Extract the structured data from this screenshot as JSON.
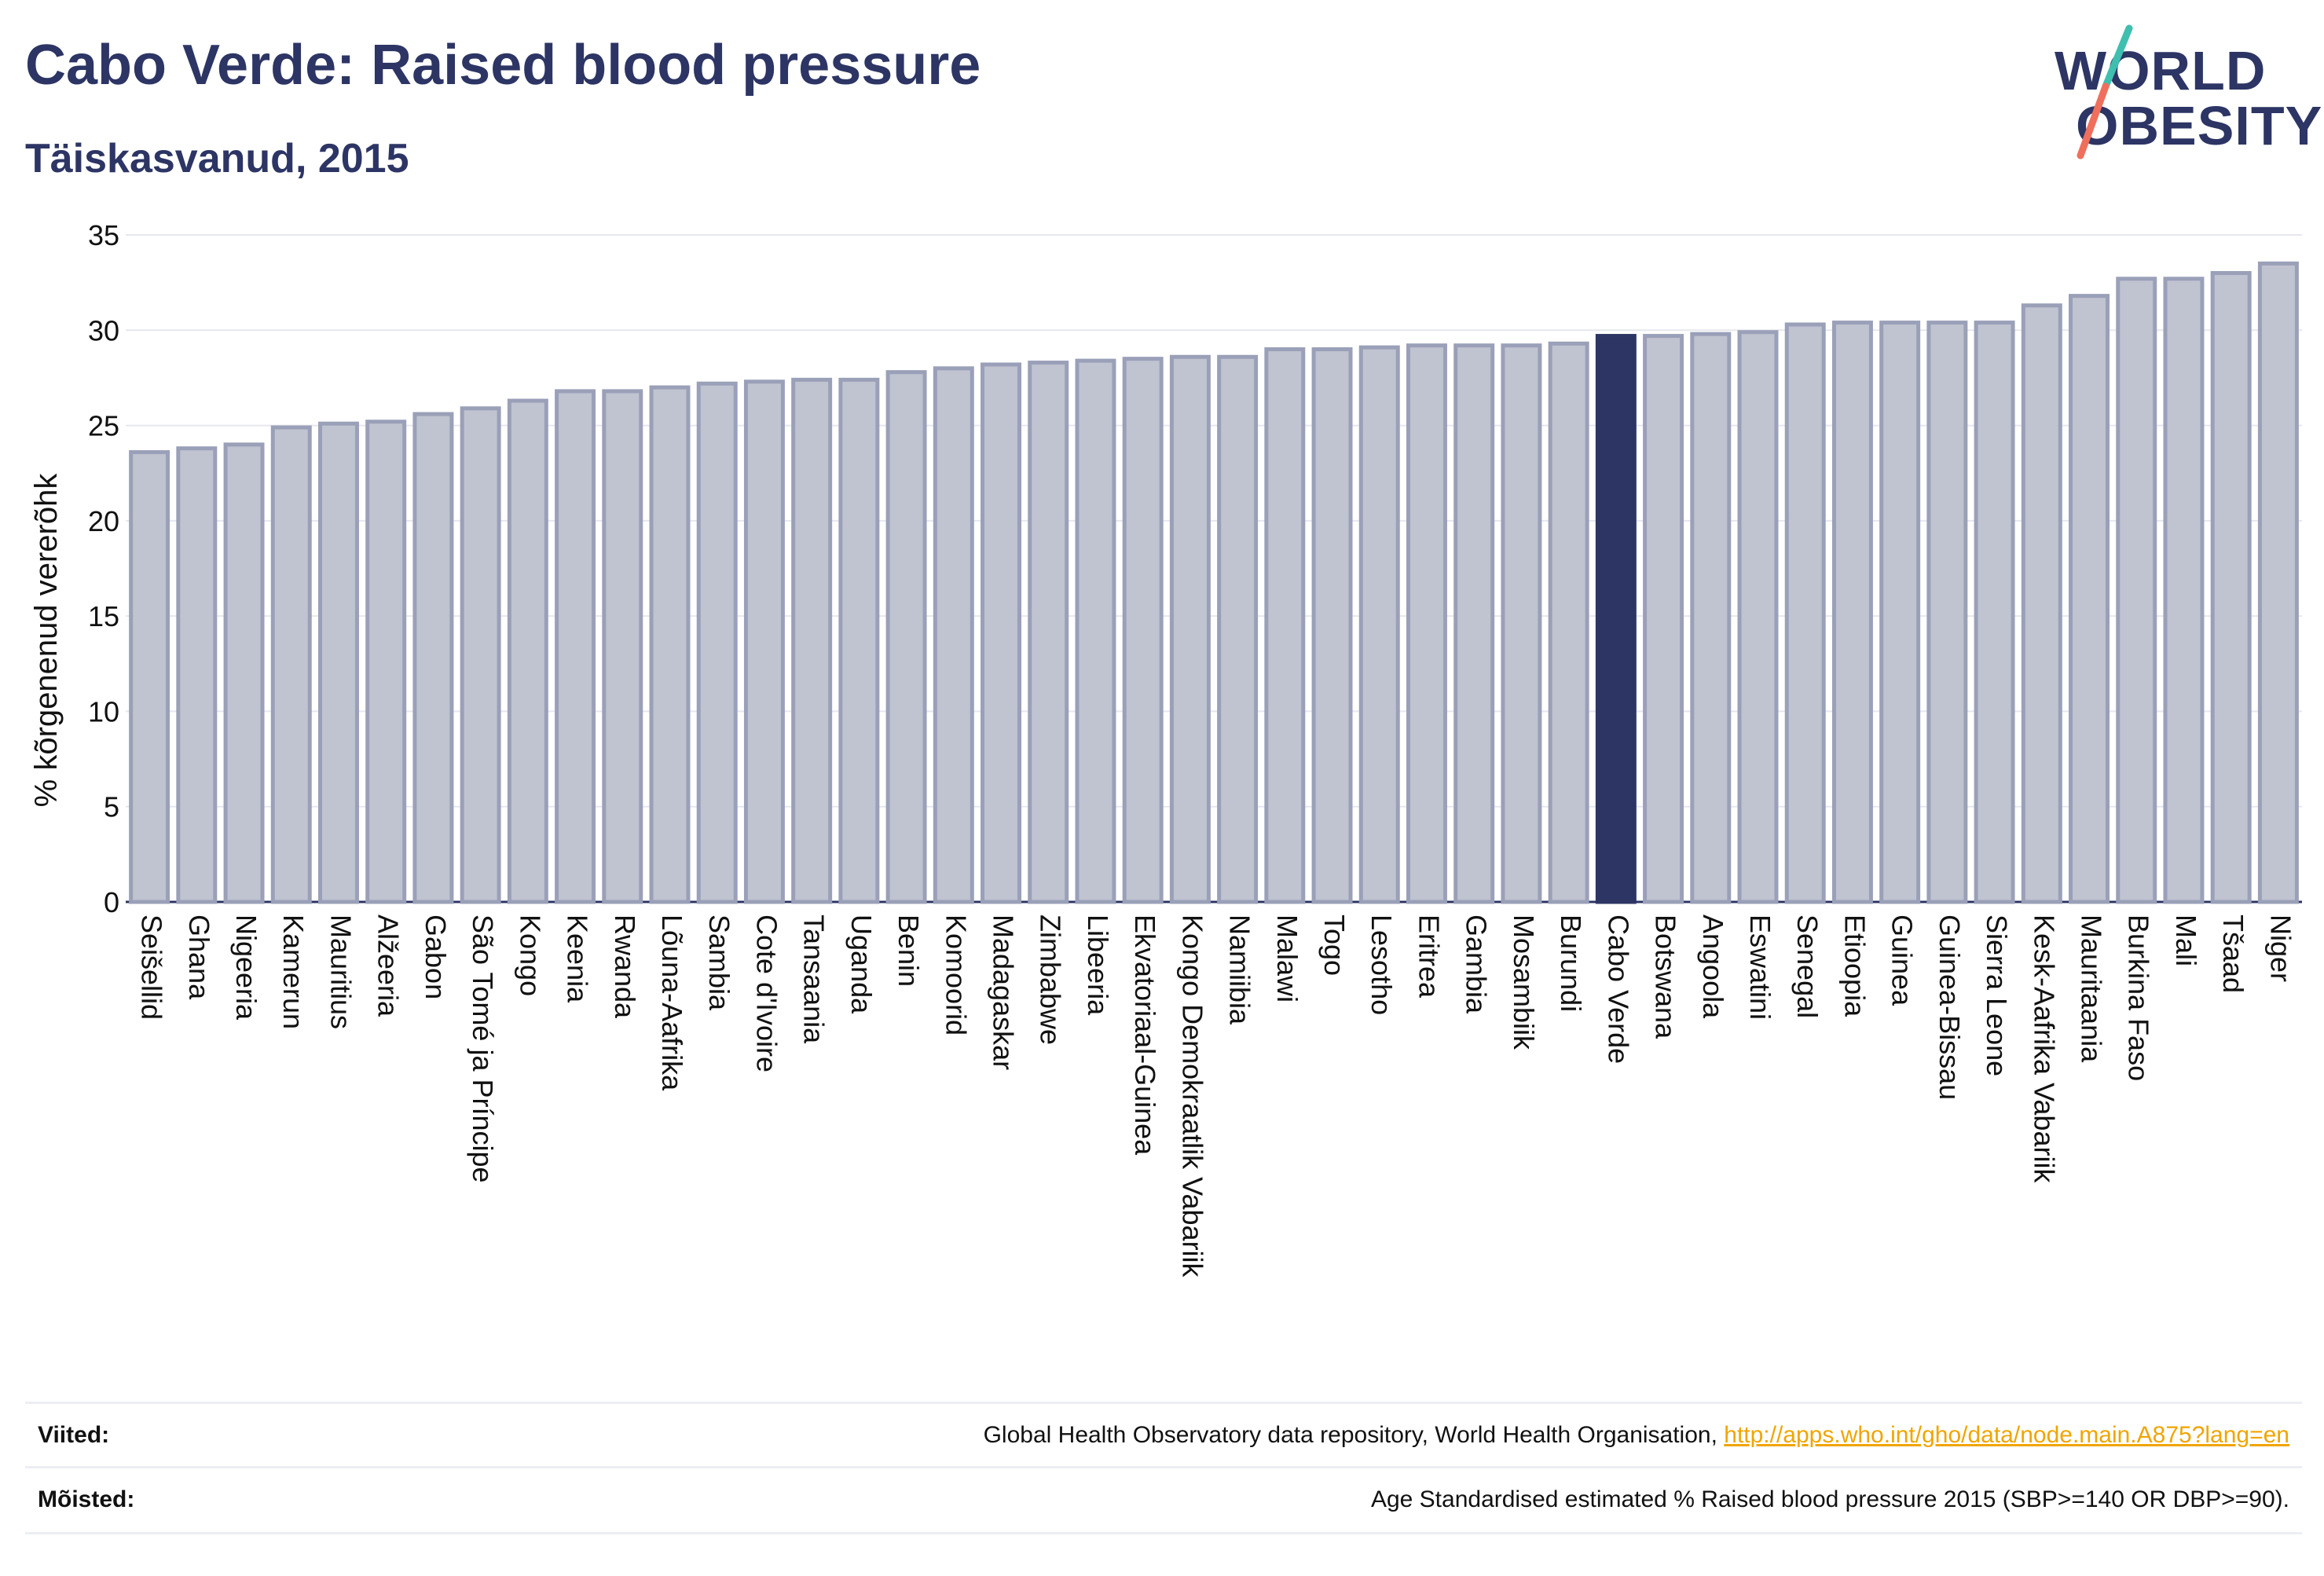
{
  "header": {
    "title": "Cabo Verde: Raised blood pressure",
    "subtitle": "Täiskasvanud, 2015"
  },
  "logo": {
    "line1": "WORLD",
    "line2": "OBESITY",
    "colors": {
      "text": "#2c3564",
      "slash_top": "#3fbfb0",
      "slash_bottom": "#ef6f5c"
    }
  },
  "chart_data": {
    "type": "bar",
    "title": "Cabo Verde: Raised blood pressure",
    "subtitle": "Täiskasvanud, 2015",
    "xlabel": "",
    "ylabel": "% kõrgenenud vererõhk",
    "ylim": [
      0,
      35
    ],
    "yticks": [
      0,
      5,
      10,
      15,
      20,
      25,
      30,
      35
    ],
    "grid": true,
    "highlight": "Cabo Verde",
    "colors": {
      "bar": "#c0c3d0",
      "bar_edge": "#9aa0b8",
      "highlight": "#2c3564",
      "grid": "#e6e8ef"
    },
    "categories": [
      "Seišellid",
      "Ghana",
      "Nigeeria",
      "Kamerun",
      "Mauritius",
      "Alžeeria",
      "Gabon",
      "São Tomé ja Príncipe",
      "Kongo",
      "Keenia",
      "Rwanda",
      "Lõuna-Aafrika",
      "Sambia",
      "Cote d'Ivoire",
      "Tansaania",
      "Uganda",
      "Benin",
      "Komoorid",
      "Madagaskar",
      "Zimbabwe",
      "Libeeria",
      "Ekvatoriaal-Guinea",
      "Kongo Demokraatlik Vabariik",
      "Namiibia",
      "Malawi",
      "Togo",
      "Lesotho",
      "Eritrea",
      "Gambia",
      "Mosambiik",
      "Burundi",
      "Cabo Verde",
      "Botswana",
      "Angoola",
      "Eswatini",
      "Senegal",
      "Etioopia",
      "Guinea",
      "Guinea-Bissau",
      "Sierra Leone",
      "Kesk-Aafrika Vabariik",
      "Mauritaania",
      "Burkina Faso",
      "Mali",
      "Tšaad",
      "Niger"
    ],
    "values": [
      23.6,
      23.8,
      24.0,
      24.9,
      25.1,
      25.2,
      25.6,
      25.9,
      26.3,
      26.8,
      26.8,
      27.0,
      27.2,
      27.3,
      27.4,
      27.4,
      27.8,
      28.0,
      28.2,
      28.3,
      28.4,
      28.5,
      28.6,
      28.6,
      29.0,
      29.0,
      29.1,
      29.2,
      29.2,
      29.2,
      29.3,
      29.7,
      29.7,
      29.8,
      29.9,
      30.3,
      30.4,
      30.4,
      30.4,
      30.4,
      31.3,
      31.8,
      32.7,
      32.7,
      33.0,
      33.5
    ]
  },
  "footer": {
    "sources_label": "Viited:",
    "sources_text": "Global Health Observatory data repository, World Health Organisation, ",
    "sources_link": "http://apps.who.int/gho/data/node.main.A875?lang=en",
    "definitions_label": "Mõisted:",
    "definitions_text": "Age Standardised estimated % Raised blood pressure 2015 (SBP>=140 OR DBP>=90)."
  }
}
